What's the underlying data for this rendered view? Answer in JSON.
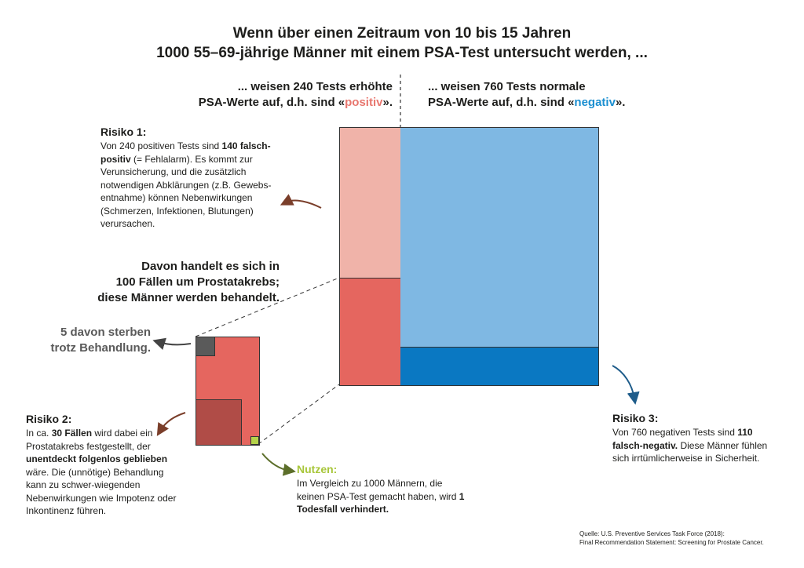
{
  "title": {
    "line1": "Wenn über einen Zeitraum von 10 bis 15 Jahren",
    "line2": "1000 55–69-jährige Männer mit einem PSA-Test untersucht werden, ..."
  },
  "positive_header": {
    "line1": "... weisen 240 Tests erhöhte",
    "line2_pre": "PSA-Werte auf, d.h. sind «",
    "line2_word": "positiv",
    "line2_post": "»."
  },
  "negative_header": {
    "line1": "... weisen 760 Tests normale",
    "line2_pre": "PSA-Werte auf, d.h. sind «",
    "line2_word": "negativ",
    "line2_post": "»."
  },
  "risk1": {
    "title": "Risiko 1:",
    "t1": "Von 240 positiven Tests sind ",
    "b1": "140 falsch-positiv",
    "t2": " (= Fehlalarm). Es kommt zur Verunsicherung, und die zusätzlich notwendigen Abklärungen (z.B. Gewebs-entnahme) können Nebenwirkungen (Schmerzen, Infektionen, Blutungen) verursachen."
  },
  "cancer_label": {
    "line1": "Davon handelt es sich in",
    "line2": "100 Fällen um Prostatakrebs;",
    "line3": "diese Männer werden behandelt."
  },
  "deaths_label": {
    "line1": "5 davon sterben",
    "line2": "trotz Behandlung."
  },
  "risk2": {
    "title": "Risiko 2:",
    "t1": "In ca. ",
    "b1": "30 Fällen",
    "t2": " wird dabei ein Prostatakrebs festgestellt, der ",
    "b2": "unentdeckt folgenlos geblieben",
    "t3": " wäre. Die (unnötige) Behandlung kann zu schwer-wiegenden Nebenwirkungen wie Impotenz oder Inkontinenz führen."
  },
  "benefit": {
    "title": "Nutzen:",
    "t1": "Im Vergleich zu 1000 Männern, die keinen PSA-Test gemacht haben, wird ",
    "b1": "1 Todesfall verhindert."
  },
  "risk3": {
    "title": "Risiko 3:",
    "t1": "Von 760 negativen Tests sind ",
    "b1": "110 falsch-negativ.",
    "t2": " Diese Männer fühlen sich irrtümlicherweise in Sicherheit."
  },
  "source": {
    "line1": "Quelle: U.S. Preventive Services Task Force (2018):",
    "line2": "Final Recommendation Statement: Screening for Prostate Cancer."
  },
  "colors": {
    "false_positive": "#f0b3a9",
    "cancer": "#e5665f",
    "normal": "#7fb8e3",
    "false_negative": "#0a78c2",
    "dead": "#5a5a5a",
    "overdiagnosed": "#b04c47",
    "saved": "#b5d34a",
    "arrow_brown": "#7a3e2a",
    "arrow_blue": "#1e5c8a",
    "arrow_green": "#5c6e2a"
  }
}
